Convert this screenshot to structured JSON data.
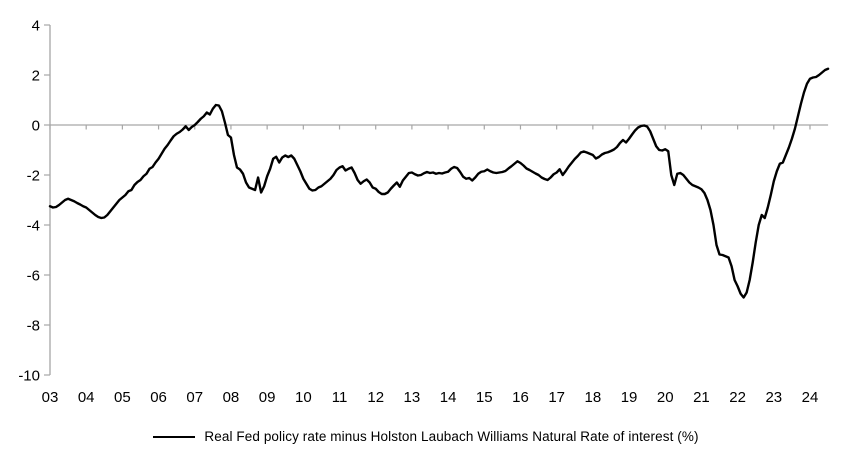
{
  "chart_data": {
    "type": "line",
    "title": "",
    "xlabel": "",
    "ylabel": "",
    "ylim": [
      -10,
      4
    ],
    "y_ticks": [
      4,
      2,
      0,
      -2,
      -4,
      -6,
      -8,
      -10
    ],
    "x_tick_labels": [
      "03",
      "04",
      "05",
      "06",
      "07",
      "08",
      "09",
      "10",
      "11",
      "12",
      "13",
      "14",
      "15",
      "16",
      "17",
      "18",
      "19",
      "20",
      "21",
      "22",
      "23",
      "24"
    ],
    "grid": false,
    "zero_axis_line": true,
    "axis_color": "#a6a6a6",
    "text_color": "#000000",
    "legend_position": "bottom-center",
    "series": [
      {
        "name": "Real Fed policy rate minus Holston Laubach Williams Natural Rate of interest (%)",
        "color": "#000000",
        "start_year": 2003,
        "frequency": "monthly",
        "values": [
          -3.25,
          -3.3,
          -3.28,
          -3.2,
          -3.1,
          -3.0,
          -2.95,
          -3.0,
          -3.05,
          -3.12,
          -3.18,
          -3.25,
          -3.3,
          -3.4,
          -3.5,
          -3.6,
          -3.68,
          -3.72,
          -3.7,
          -3.6,
          -3.45,
          -3.3,
          -3.15,
          -3.0,
          -2.9,
          -2.8,
          -2.65,
          -2.6,
          -2.4,
          -2.28,
          -2.2,
          -2.05,
          -1.95,
          -1.75,
          -1.68,
          -1.5,
          -1.35,
          -1.15,
          -0.95,
          -0.8,
          -0.62,
          -0.45,
          -0.35,
          -0.28,
          -0.18,
          -0.05,
          -0.2,
          -0.08,
          0.0,
          0.12,
          0.25,
          0.35,
          0.5,
          0.42,
          0.65,
          0.8,
          0.78,
          0.55,
          0.1,
          -0.4,
          -0.5,
          -1.2,
          -1.7,
          -1.78,
          -1.95,
          -2.3,
          -2.5,
          -2.55,
          -2.6,
          -2.1,
          -2.7,
          -2.45,
          -2.05,
          -1.75,
          -1.35,
          -1.27,
          -1.5,
          -1.3,
          -1.22,
          -1.28,
          -1.22,
          -1.35,
          -1.6,
          -1.85,
          -2.15,
          -2.35,
          -2.55,
          -2.62,
          -2.6,
          -2.5,
          -2.45,
          -2.35,
          -2.25,
          -2.15,
          -2.0,
          -1.8,
          -1.7,
          -1.65,
          -1.82,
          -1.75,
          -1.7,
          -1.92,
          -2.2,
          -2.35,
          -2.25,
          -2.18,
          -2.3,
          -2.5,
          -2.55,
          -2.68,
          -2.76,
          -2.76,
          -2.7,
          -2.55,
          -2.42,
          -2.3,
          -2.47,
          -2.22,
          -2.07,
          -1.92,
          -1.9,
          -1.97,
          -2.02,
          -2.0,
          -1.93,
          -1.88,
          -1.92,
          -1.9,
          -1.95,
          -1.92,
          -1.94,
          -1.9,
          -1.87,
          -1.75,
          -1.68,
          -1.72,
          -1.88,
          -2.07,
          -2.15,
          -2.12,
          -2.22,
          -2.1,
          -1.95,
          -1.87,
          -1.85,
          -1.78,
          -1.85,
          -1.9,
          -1.92,
          -1.9,
          -1.88,
          -1.84,
          -1.74,
          -1.65,
          -1.55,
          -1.45,
          -1.52,
          -1.62,
          -1.74,
          -1.8,
          -1.87,
          -1.94,
          -2.0,
          -2.1,
          -2.16,
          -2.2,
          -2.1,
          -1.97,
          -1.9,
          -1.77,
          -2.0,
          -1.84,
          -1.66,
          -1.51,
          -1.36,
          -1.24,
          -1.1,
          -1.06,
          -1.1,
          -1.15,
          -1.2,
          -1.34,
          -1.28,
          -1.18,
          -1.12,
          -1.09,
          -1.04,
          -0.98,
          -0.88,
          -0.72,
          -0.6,
          -0.7,
          -0.55,
          -0.38,
          -0.22,
          -0.1,
          -0.04,
          -0.02,
          -0.06,
          -0.25,
          -0.55,
          -0.85,
          -1.0,
          -1.02,
          -0.97,
          -1.05,
          -2.0,
          -2.4,
          -1.95,
          -1.92,
          -2.0,
          -2.15,
          -2.3,
          -2.4,
          -2.45,
          -2.5,
          -2.57,
          -2.72,
          -3.0,
          -3.4,
          -4.0,
          -4.8,
          -5.18,
          -5.2,
          -5.25,
          -5.3,
          -5.65,
          -6.2,
          -6.45,
          -6.75,
          -6.9,
          -6.7,
          -6.2,
          -5.5,
          -4.7,
          -4.0,
          -3.6,
          -3.72,
          -3.3,
          -2.8,
          -2.25,
          -1.85,
          -1.55,
          -1.5,
          -1.2,
          -0.9,
          -0.55,
          -0.15,
          0.35,
          0.85,
          1.3,
          1.65,
          1.85,
          1.9,
          1.92,
          2.0,
          2.1,
          2.2,
          2.25
        ]
      }
    ]
  },
  "legend": {
    "label": "Real Fed policy rate minus Holston Laubach Williams Natural Rate of interest (%)"
  }
}
